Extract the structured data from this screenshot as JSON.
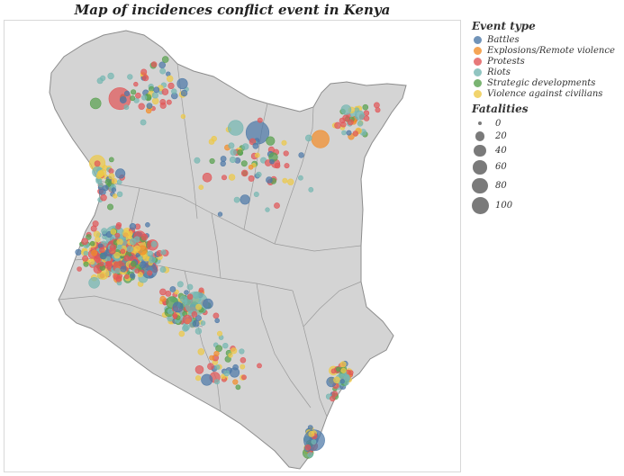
{
  "title": "Map of incidences conflict event in Kenya",
  "colors": {
    "background_map": "#d4d4d4",
    "land_border": "#8c8c8c"
  },
  "legend_event": {
    "title": "Event type",
    "items": [
      {
        "label": "Battles",
        "color": "#4e79a7"
      },
      {
        "label": "Explosions/Remote violence",
        "color": "#f28e2b"
      },
      {
        "label": "Protests",
        "color": "#e15759"
      },
      {
        "label": "Riots",
        "color": "#76b7b2"
      },
      {
        "label": "Strategic developments",
        "color": "#59a14f"
      },
      {
        "label": "Violence against civilians",
        "color": "#edc948"
      }
    ]
  },
  "legend_size": {
    "title": "Fatalities",
    "items": [
      {
        "label": "0",
        "value": 0
      },
      {
        "label": "20",
        "value": 20
      },
      {
        "label": "40",
        "value": 40
      },
      {
        "label": "60",
        "value": 60
      },
      {
        "label": "80",
        "value": 80
      },
      {
        "label": "100",
        "value": 100
      }
    ]
  }
}
